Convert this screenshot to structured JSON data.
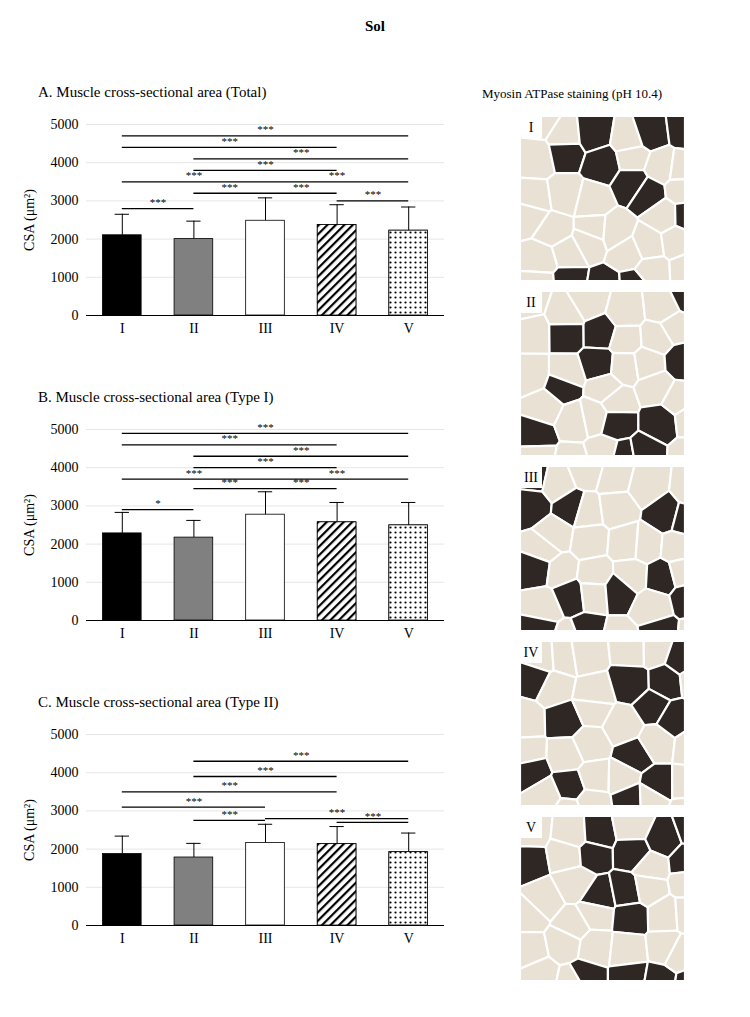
{
  "title": "Sol",
  "chart_data": [
    {
      "type": "bar",
      "title": "A. Muscle cross-sectional area (Total)",
      "ylabel": "CSA (μm²)",
      "categories": [
        "I",
        "II",
        "III",
        "IV",
        "V"
      ],
      "values": [
        2100,
        2000,
        2480,
        2370,
        2220
      ],
      "errors": [
        550,
        470,
        600,
        530,
        620
      ],
      "colors": [
        "#000000",
        "#808080",
        "#ffffff",
        "#ffffff",
        "#ffffff"
      ],
      "ylim": [
        0,
        5000
      ],
      "yticks": [
        0,
        1000,
        2000,
        3000,
        4000,
        5000
      ],
      "grid": true,
      "annotations": [
        {
          "from": "I",
          "to": "V",
          "label": "***",
          "y": 4700
        },
        {
          "from": "I",
          "to": "IV",
          "label": "***",
          "y": 4400
        },
        {
          "from": "II",
          "to": "V",
          "label": "***",
          "y": 4100
        },
        {
          "from": "II",
          "to": "IV",
          "label": "***",
          "y": 3800
        },
        {
          "from": "I",
          "to": "III",
          "label": "***",
          "y": 3500
        },
        {
          "from": "III",
          "to": "V",
          "label": "***",
          "y": 3500
        },
        {
          "from": "II",
          "to": "III",
          "label": "***",
          "y": 3200
        },
        {
          "from": "III",
          "to": "IV",
          "label": "***",
          "y": 3200
        },
        {
          "from": "I",
          "to": "II",
          "label": "***",
          "y": 2800
        },
        {
          "from": "IV",
          "to": "V",
          "label": "***",
          "y": 3000
        }
      ]
    },
    {
      "type": "bar",
      "title": "B. Muscle cross-sectional area (Type I)",
      "ylabel": "CSA (μm²)",
      "categories": [
        "I",
        "II",
        "III",
        "IV",
        "V"
      ],
      "values": [
        2280,
        2170,
        2770,
        2570,
        2490
      ],
      "errors": [
        550,
        450,
        600,
        520,
        600
      ],
      "colors": [
        "#000000",
        "#808080",
        "#ffffff",
        "#ffffff",
        "#ffffff"
      ],
      "ylim": [
        0,
        5000
      ],
      "yticks": [
        0,
        1000,
        2000,
        3000,
        4000,
        5000
      ],
      "grid": true,
      "annotations": [
        {
          "from": "I",
          "to": "V",
          "label": "***",
          "y": 4900
        },
        {
          "from": "I",
          "to": "IV",
          "label": "***",
          "y": 4600
        },
        {
          "from": "II",
          "to": "V",
          "label": "***",
          "y": 4300
        },
        {
          "from": "II",
          "to": "IV",
          "label": "***",
          "y": 4000
        },
        {
          "from": "I",
          "to": "III",
          "label": "***",
          "y": 3700
        },
        {
          "from": "III",
          "to": "V",
          "label": "***",
          "y": 3700
        },
        {
          "from": "II",
          "to": "III",
          "label": "***",
          "y": 3450
        },
        {
          "from": "III",
          "to": "IV",
          "label": "***",
          "y": 3450
        },
        {
          "from": "I",
          "to": "II",
          "label": "*",
          "y": 2900
        }
      ]
    },
    {
      "type": "bar",
      "title": "C. Muscle cross-sectional area (Type II)",
      "ylabel": "CSA (μm²)",
      "categories": [
        "I",
        "II",
        "III",
        "IV",
        "V"
      ],
      "values": [
        1870,
        1780,
        2160,
        2130,
        1920
      ],
      "errors": [
        470,
        370,
        490,
        460,
        500
      ],
      "colors": [
        "#000000",
        "#808080",
        "#ffffff",
        "#ffffff",
        "#ffffff"
      ],
      "ylim": [
        0,
        5000
      ],
      "yticks": [
        0,
        1000,
        2000,
        3000,
        4000,
        5000
      ],
      "grid": true,
      "annotations": [
        {
          "from": "II",
          "to": "V",
          "label": "***",
          "y": 4300
        },
        {
          "from": "II",
          "to": "IV",
          "label": "***",
          "y": 3900
        },
        {
          "from": "I",
          "to": "IV",
          "label": "***",
          "y": 3500
        },
        {
          "from": "I",
          "to": "III",
          "label": "***",
          "y": 3100
        },
        {
          "from": "II",
          "to": "III",
          "label": "***",
          "y": 2750
        },
        {
          "from": "III",
          "to": "V",
          "label": "***",
          "y": 2800
        },
        {
          "from": "IV",
          "to": "V",
          "label": "***",
          "y": 2700
        }
      ]
    }
  ],
  "image_panel": {
    "title": "Myosin ATPase staining (pH 10.4)",
    "labels": [
      "I",
      "II",
      "III",
      "IV",
      "V"
    ]
  }
}
